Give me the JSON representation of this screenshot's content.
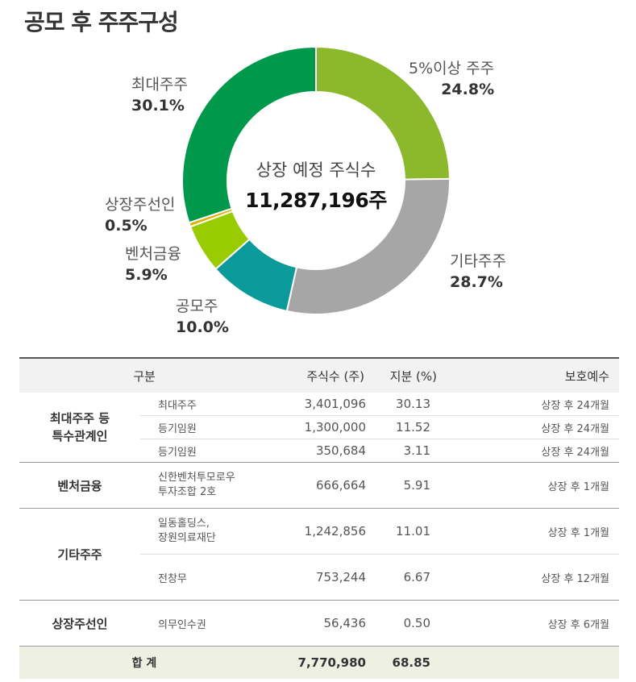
{
  "title": "공모 후 주주구성",
  "chart_data": {
    "type": "pie",
    "center_caption": "상장 예정 주식수",
    "center_value": "11,287,196주",
    "slices": [
      {
        "label": "5%이상 주주",
        "value": 24.8,
        "display": "24.8%",
        "color": "#8cb82b"
      },
      {
        "label": "기타주주",
        "value": 28.7,
        "display": "28.7%",
        "color": "#a6a6a6"
      },
      {
        "label": "공모주",
        "value": 10.0,
        "display": "10.0%",
        "color": "#0a9a9a"
      },
      {
        "label": "벤처금융",
        "value": 5.9,
        "display": "5.9%",
        "color": "#99cc00"
      },
      {
        "label": "상장주선인",
        "value": 0.5,
        "display": "0.5%",
        "color": "#e0b000"
      },
      {
        "label": "최대주주",
        "value": 30.1,
        "display": "30.1%",
        "color": "#00994c"
      }
    ]
  },
  "table": {
    "headers": [
      "구분",
      "주식수 (주)",
      "지분 (%)",
      "보호예수"
    ],
    "groups": [
      {
        "name": "최대주주 등\n특수관계인",
        "rows": [
          {
            "holder": "최대주주",
            "shares": "3,401,096",
            "pct": "30.13",
            "lockup": "상장 후 24개월"
          },
          {
            "holder": "등기임원",
            "shares": "1,300,000",
            "pct": "11.52",
            "lockup": "상장 후 24개월"
          },
          {
            "holder": "등기임원",
            "shares": "350,684",
            "pct": "3.11",
            "lockup": "상장 후 24개월"
          }
        ]
      },
      {
        "name": "벤처금융",
        "rows": [
          {
            "holder": "신한벤처투모로우\n투자조합 2호",
            "shares": "666,664",
            "pct": "5.91",
            "lockup": "상장 후 1개월"
          }
        ]
      },
      {
        "name": "기타주주",
        "rows": [
          {
            "holder": "일동홀딩스,\n장원의료재단",
            "shares": "1,242,856",
            "pct": "11.01",
            "lockup": "상장 후 1개월"
          },
          {
            "holder": "전창무",
            "shares": "753,244",
            "pct": "6.67",
            "lockup": "상장 후 12개월"
          }
        ]
      },
      {
        "name": "상장주선인",
        "rows": [
          {
            "holder": "의무인수권",
            "shares": "56,436",
            "pct": "0.50",
            "lockup": "상장 후 6개월"
          }
        ]
      }
    ],
    "total": {
      "label": "합 계",
      "shares": "7,770,980",
      "pct": "68.85"
    }
  }
}
